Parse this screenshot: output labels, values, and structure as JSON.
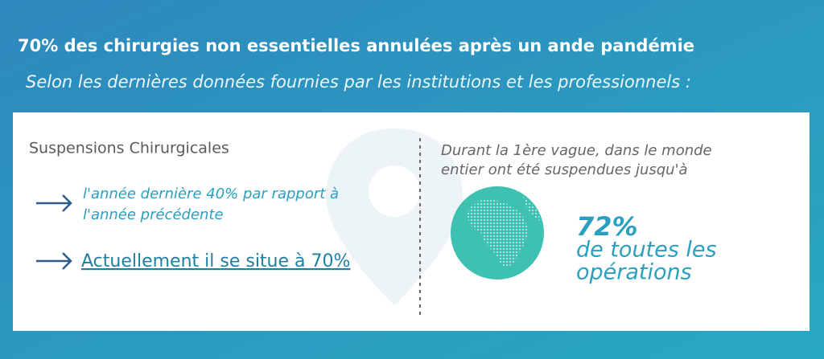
{
  "header": {
    "title": "70% des chirurgies non essentielles annulées après un ande pandémie",
    "subtitle": "Selon les dernières données fournies par les institutions et les professionnels :"
  },
  "left": {
    "heading": "Suspensions Chirurgicales",
    "items": [
      {
        "lines": [
          "l'année dernière 40% par rapport à",
          "l'année précédente"
        ]
      },
      {
        "lines": [
          "Actuellement il se situe à 70%"
        ]
      }
    ]
  },
  "right": {
    "intro_lines": [
      "Durant la 1ère vague, dans le monde",
      "entier ont été suspendues jusqu'à"
    ],
    "stat": "72%",
    "stat_lines": [
      "de toutes les",
      "opérations"
    ]
  }
}
